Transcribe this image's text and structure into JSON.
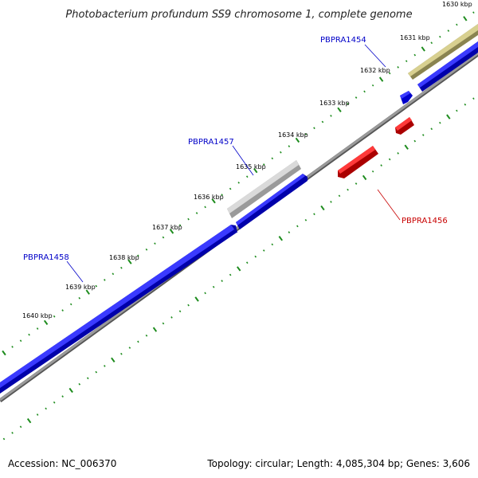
{
  "title": "Photobacterium profundum SS9 chromosome 1, complete genome",
  "footer": {
    "accession": "Accession: NC_006370",
    "summary": "Topology: circular; Length: 4,085,304 bp; Genes: 3,606"
  },
  "colors": {
    "tick": "#1e8c1e",
    "forward_gene": "#0000e6",
    "reverse_gene": "#e60000",
    "backbone": "#808080",
    "gray_feature": "#bdbdbd",
    "olive_feature": "#b8b070",
    "blue_label": "#0000c8",
    "red_label": "#c80000"
  },
  "ticks": [
    {
      "label": "1630 kbp"
    },
    {
      "label": "1631 kbp"
    },
    {
      "label": "1632 kbp"
    },
    {
      "label": "1633 kbp"
    },
    {
      "label": "1634 kbp"
    },
    {
      "label": "1635 kbp"
    },
    {
      "label": "1636 kbp"
    },
    {
      "label": "1637 kbp"
    },
    {
      "label": "1638 kbp"
    },
    {
      "label": "1639 kbp"
    },
    {
      "label": "1640 kbp"
    }
  ],
  "genes": [
    {
      "name": "PBPRA1454",
      "strand": "forward"
    },
    {
      "name": "PBPRA1457",
      "strand": "forward"
    },
    {
      "name": "PBPRA1458",
      "strand": "forward"
    },
    {
      "name": "PBPRA1456",
      "strand": "reverse"
    }
  ]
}
